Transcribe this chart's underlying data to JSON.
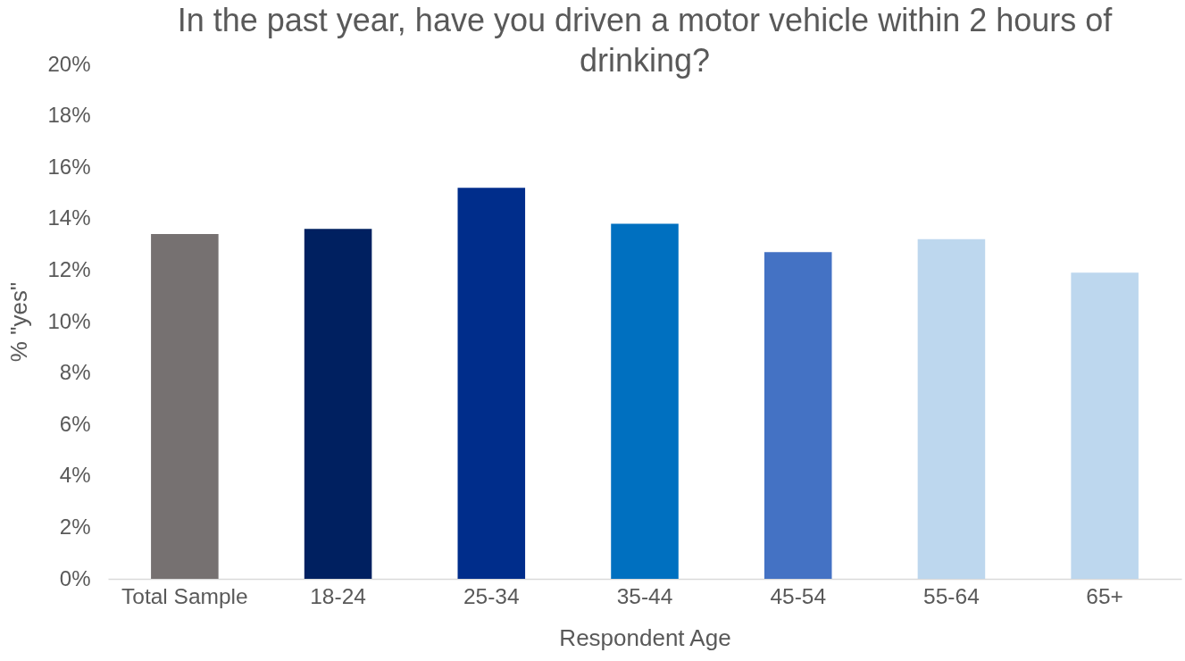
{
  "chart_data": {
    "type": "bar",
    "title": "In the past year, have you driven a motor vehicle within 2 hours of drinking?",
    "xlabel": "Respondent Age",
    "ylabel": "% \"yes\"",
    "categories": [
      "Total Sample",
      "18-24",
      "25-34",
      "35-44",
      "45-54",
      "55-64",
      "65+"
    ],
    "values": [
      13.4,
      13.6,
      15.2,
      13.8,
      12.7,
      13.2,
      11.9
    ],
    "colors": [
      "#767171",
      "#002060",
      "#002D8B",
      "#0070C0",
      "#4472C4",
      "#BDD7EE",
      "#BDD7EE"
    ],
    "ylim": [
      0,
      20
    ],
    "yticks": [
      {
        "value": 0,
        "label": "0%"
      },
      {
        "value": 2,
        "label": "2%"
      },
      {
        "value": 4,
        "label": "4%"
      },
      {
        "value": 6,
        "label": "6%"
      },
      {
        "value": 8,
        "label": "8%"
      },
      {
        "value": 10,
        "label": "10%"
      },
      {
        "value": 12,
        "label": "12%"
      },
      {
        "value": 14,
        "label": "14%"
      },
      {
        "value": 16,
        "label": "16%"
      },
      {
        "value": 18,
        "label": "18%"
      },
      {
        "value": 20,
        "label": "20%"
      }
    ],
    "grid": false,
    "legend": false
  }
}
